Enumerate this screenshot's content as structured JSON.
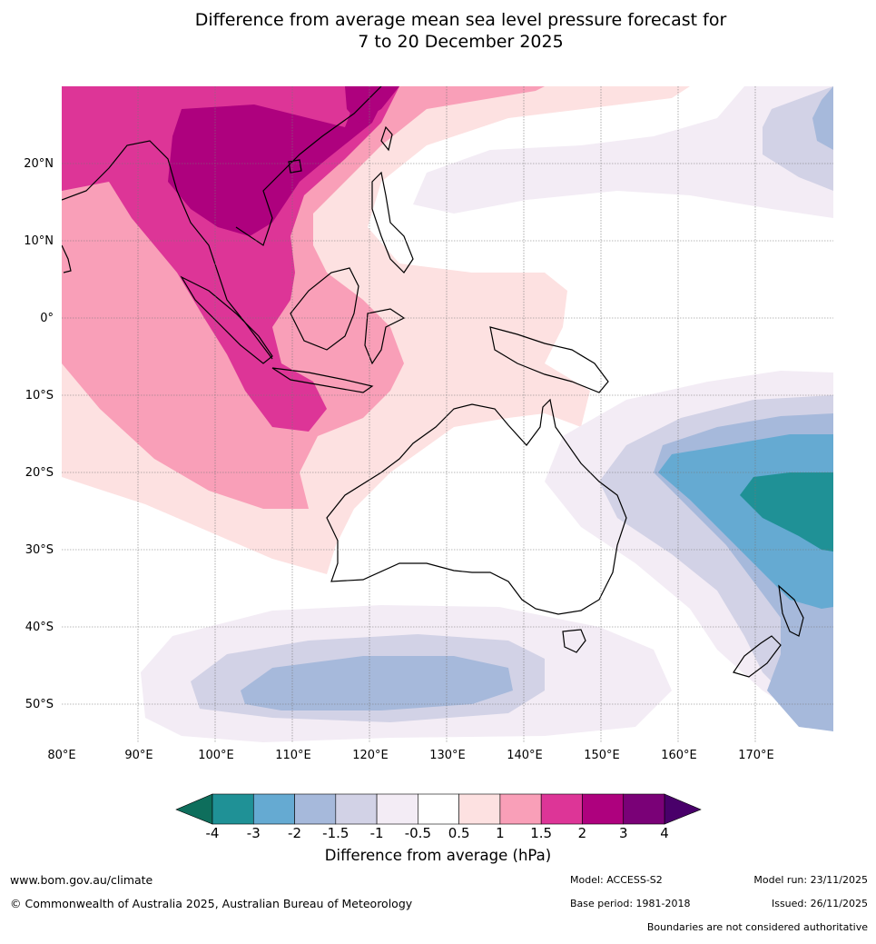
{
  "title_line1": "Difference from average mean sea level pressure forecast for",
  "title_line2": "7 to 20 December 2025",
  "lon_labels": [
    "80°E",
    "90°E",
    "100°E",
    "110°E",
    "120°E",
    "130°E",
    "140°E",
    "150°E",
    "160°E",
    "170°E"
  ],
  "lat_labels": [
    "20°N",
    "10°N",
    "0°",
    "10°S",
    "20°S",
    "30°S",
    "40°S",
    "50°S"
  ],
  "colorbar": {
    "ticks": [
      "-4",
      "-3",
      "-2",
      "-1.5",
      "-1",
      "-0.5",
      "0.5",
      "1",
      "1.5",
      "2",
      "3",
      "4"
    ],
    "colors": [
      "#0e6e5c",
      "#1f9196",
      "#65aad2",
      "#a6b9db",
      "#d2d2e6",
      "#f3ecf5",
      "#ffffff",
      "#fde1e1",
      "#f99fb8",
      "#dd3597",
      "#ae017e",
      "#7a0177",
      "#49006a"
    ],
    "title": "Difference from average (hPa)"
  },
  "footer": {
    "website": "www.bom.gov.au/climate",
    "copyright": "© Commonwealth of Australia 2025, Australian Bureau of Meteorology",
    "model": "Model: ACCESS-S2",
    "base_period": "Base period: 1981-2018",
    "model_run": "Model run: 23/11/2025",
    "issued": "Issued: 26/11/2025",
    "disclaimer": "Boundaries are not considered authoritative"
  }
}
